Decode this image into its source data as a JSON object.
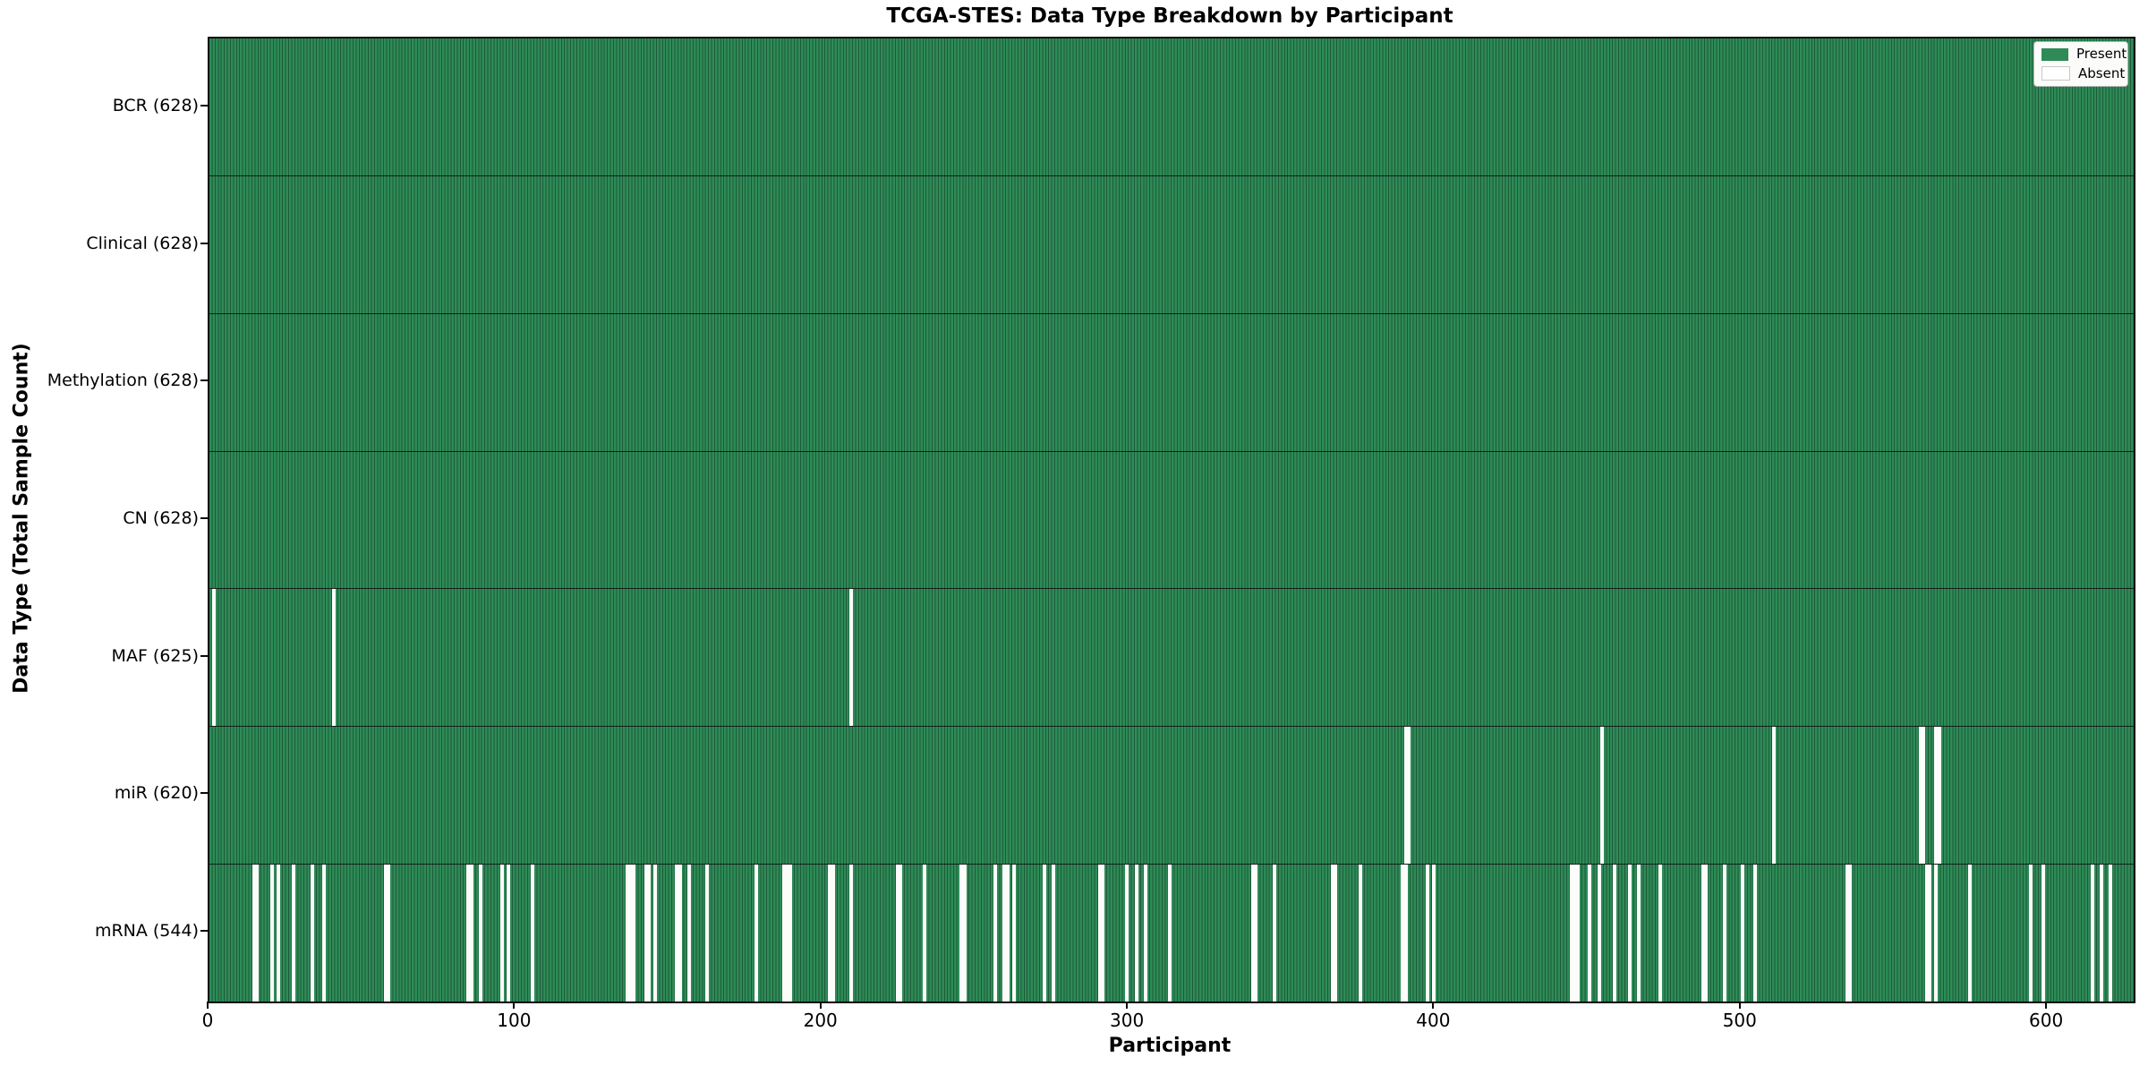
{
  "title": "TCGA-STES: Data Type Breakdown by Participant",
  "chart_data": {
    "type": "heatmap",
    "title": "TCGA-STES: Data Type Breakdown by Participant",
    "xlabel": "Participant",
    "ylabel": "Data Type (Total Sample Count)",
    "x_range": [
      0,
      628
    ],
    "x_ticks": [
      0,
      100,
      200,
      300,
      400,
      500,
      600
    ],
    "n_participants": 628,
    "grid": false,
    "legend": {
      "position": "upper right",
      "entries": [
        {
          "label": "Present",
          "color": "#2e8b57"
        },
        {
          "label": "Absent",
          "color": "#ffffff"
        }
      ]
    },
    "colors": {
      "present": "#2e8b57",
      "bar_edge": "#1d5a39",
      "absent": "#fcfcfa",
      "frame": "#0a0a0a"
    },
    "rows": [
      {
        "key": "bcr",
        "data_type": "BCR",
        "label": "BCR (628)",
        "present_count": 628,
        "absent_count": 0,
        "absent_participants": []
      },
      {
        "key": "clinical",
        "data_type": "Clinical",
        "label": "Clinical (628)",
        "present_count": 628,
        "absent_count": 0,
        "absent_participants": []
      },
      {
        "key": "methylation",
        "data_type": "Methylation",
        "label": "Methylation (628)",
        "present_count": 628,
        "absent_count": 0,
        "absent_participants": []
      },
      {
        "key": "cn",
        "data_type": "CN",
        "label": "CN (628)",
        "present_count": 628,
        "absent_count": 0,
        "absent_participants": []
      },
      {
        "key": "maf",
        "data_type": "MAF",
        "label": "MAF (625)",
        "present_count": 625,
        "absent_count": 3,
        "absent_participants": [
          1,
          40,
          209
        ]
      },
      {
        "key": "mir",
        "data_type": "miR",
        "label": "miR (620)",
        "present_count": 620,
        "absent_count": 8,
        "absent_participants": [
          390,
          391,
          454,
          510,
          558,
          559,
          563,
          564
        ]
      },
      {
        "key": "mrna",
        "data_type": "mRNA",
        "label": "mRNA (544)",
        "present_count": 544,
        "absent_count": 84,
        "absent_participants": [
          14,
          15,
          20,
          22,
          27,
          33,
          37,
          57,
          58,
          84,
          85,
          88,
          95,
          97,
          105,
          136,
          137,
          138,
          142,
          143,
          145,
          152,
          153,
          156,
          162,
          178,
          187,
          188,
          189,
          202,
          203,
          209,
          224,
          225,
          233,
          245,
          246,
          256,
          259,
          260,
          262,
          272,
          275,
          290,
          291,
          299,
          302,
          305,
          313,
          340,
          341,
          347,
          366,
          367,
          375,
          389,
          390,
          397,
          399,
          444,
          445,
          446,
          450,
          453,
          458,
          463,
          466,
          473,
          487,
          488,
          494,
          500,
          504,
          534,
          535,
          560,
          561,
          563,
          574,
          594,
          598,
          614,
          617,
          620
        ]
      }
    ]
  }
}
